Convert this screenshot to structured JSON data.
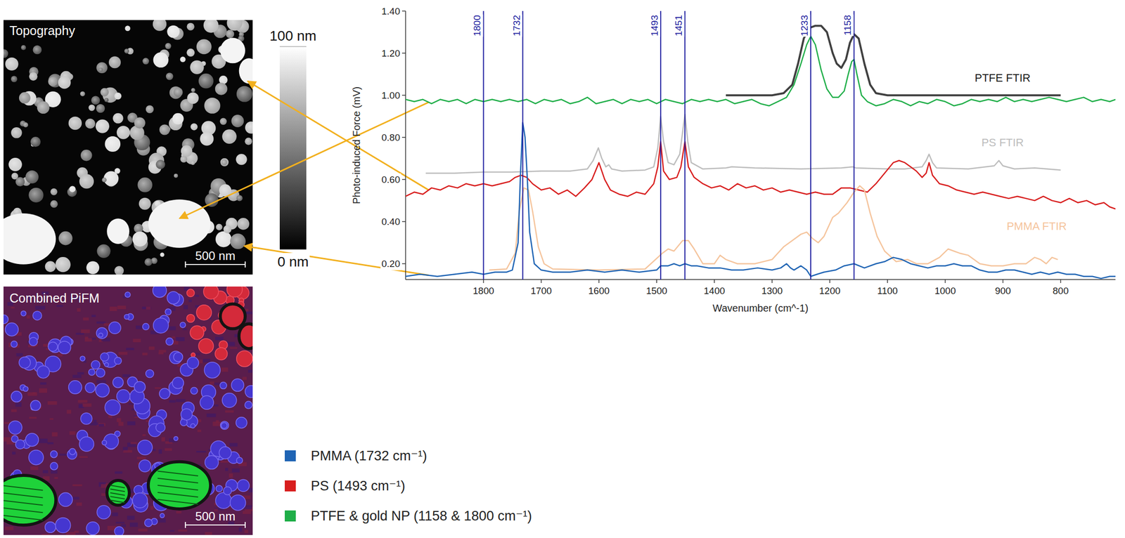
{
  "figure": {
    "topography": {
      "title": "Topography",
      "scale_bar": "500 nm",
      "colorbar": {
        "range": [
          0,
          100
        ],
        "ticks": [
          {
            "value": 0,
            "label": "0 nm"
          },
          {
            "value": 100,
            "label": "100 nm"
          }
        ]
      }
    },
    "pifm": {
      "title": "Combined PiFM",
      "scale_bar": "500 nm"
    }
  },
  "chart_data": {
    "type": "line",
    "x_label": "Wavenumber (cm^-1)",
    "y_label": "Photo-induced Force (mV)",
    "xlim": [
      1935,
      705
    ],
    "ylim": [
      0.125,
      1.4
    ],
    "xticks": [
      1800,
      1700,
      1600,
      1500,
      1400,
      1300,
      1200,
      1100,
      1000,
      900,
      800
    ],
    "yticks": [
      {
        "value": 0.2,
        "label": "0.20"
      },
      {
        "value": 0.4,
        "label": "0.40"
      },
      {
        "value": 0.6,
        "label": "0.60"
      },
      {
        "value": 0.8,
        "label": "0.80"
      },
      {
        "value": 1.0,
        "label": "1.00"
      },
      {
        "value": 1.2,
        "label": "1.20"
      },
      {
        "value": 1.4,
        "label": "1.40"
      }
    ],
    "grid": false,
    "legend": "bottom-left",
    "vlines": [
      1800,
      1732,
      1493,
      1451,
      1233,
      1158
    ],
    "series": [
      {
        "name": "PTFE FTIR",
        "color": "#404040",
        "x": [
          1380,
          1300,
          1280,
          1265,
          1255,
          1245,
          1235,
          1225,
          1215,
          1205,
          1195,
          1188,
          1180,
          1172,
          1165,
          1158,
          1150,
          1140,
          1130,
          1120,
          1100,
          800
        ],
        "values": [
          1.0,
          1.0,
          1.01,
          1.05,
          1.15,
          1.27,
          1.32,
          1.33,
          1.33,
          1.3,
          1.2,
          1.15,
          1.13,
          1.17,
          1.25,
          1.29,
          1.27,
          1.15,
          1.05,
          1.01,
          1.0,
          1.0
        ]
      },
      {
        "name": "PTFE & gold NP (1158 & 1800 cm⁻¹)",
        "color": "#1fae48",
        "x": [
          1935,
          1920,
          1905,
          1890,
          1875,
          1860,
          1845,
          1830,
          1815,
          1800,
          1785,
          1770,
          1755,
          1740,
          1725,
          1710,
          1695,
          1680,
          1665,
          1650,
          1635,
          1620,
          1605,
          1590,
          1575,
          1560,
          1545,
          1530,
          1515,
          1500,
          1485,
          1470,
          1455,
          1440,
          1425,
          1410,
          1395,
          1380,
          1365,
          1350,
          1335,
          1320,
          1305,
          1290,
          1275,
          1262,
          1250,
          1240,
          1233,
          1225,
          1215,
          1205,
          1195,
          1185,
          1175,
          1168,
          1162,
          1158,
          1153,
          1145,
          1135,
          1120,
          1105,
          1090,
          1075,
          1060,
          1045,
          1030,
          1015,
          1000,
          985,
          970,
          955,
          940,
          925,
          910,
          895,
          880,
          865,
          850,
          835,
          820,
          805,
          790,
          775,
          760,
          745,
          730,
          715,
          705
        ],
        "values": [
          0.98,
          0.97,
          0.98,
          0.96,
          0.98,
          0.97,
          0.98,
          0.96,
          0.98,
          0.97,
          0.98,
          0.97,
          0.98,
          0.97,
          0.98,
          0.96,
          0.98,
          0.97,
          0.98,
          0.96,
          0.97,
          0.99,
          0.96,
          0.97,
          0.98,
          0.96,
          0.98,
          0.97,
          0.98,
          0.96,
          0.98,
          0.97,
          0.96,
          0.98,
          0.97,
          0.98,
          0.97,
          0.98,
          0.96,
          0.97,
          0.98,
          0.96,
          0.95,
          0.97,
          0.99,
          1.05,
          1.15,
          1.24,
          1.28,
          1.24,
          1.12,
          1.03,
          0.99,
          0.99,
          1.02,
          1.1,
          1.16,
          1.17,
          1.1,
          1.0,
          0.97,
          0.95,
          0.96,
          0.98,
          0.97,
          0.95,
          0.97,
          0.96,
          0.98,
          0.97,
          0.95,
          0.96,
          0.98,
          0.97,
          0.98,
          0.97,
          0.99,
          0.97,
          0.98,
          0.97,
          0.98,
          0.99,
          0.98,
          0.97,
          0.98,
          0.99,
          0.97,
          0.98,
          0.97,
          0.98
        ]
      },
      {
        "name": "PS FTIR",
        "color": "#bdbdbd",
        "x": [
          1900,
          1850,
          1800,
          1750,
          1700,
          1650,
          1620,
          1610,
          1601,
          1595,
          1588,
          1583,
          1578,
          1560,
          1520,
          1505,
          1498,
          1493,
          1488,
          1480,
          1470,
          1460,
          1451,
          1446,
          1440,
          1420,
          1380,
          1370,
          1330,
          1250,
          1180,
          1160,
          1155,
          1100,
          1070,
          1040,
          1033,
          1028,
          1022,
          1015,
          960,
          915,
          907,
          900,
          880,
          845,
          800
        ],
        "values": [
          0.63,
          0.63,
          0.635,
          0.635,
          0.64,
          0.64,
          0.65,
          0.69,
          0.75,
          0.7,
          0.66,
          0.67,
          0.65,
          0.64,
          0.645,
          0.66,
          0.75,
          0.9,
          0.78,
          0.68,
          0.67,
          0.72,
          0.91,
          0.78,
          0.68,
          0.65,
          0.655,
          0.66,
          0.655,
          0.65,
          0.655,
          0.66,
          0.655,
          0.65,
          0.65,
          0.66,
          0.69,
          0.72,
          0.68,
          0.655,
          0.65,
          0.665,
          0.69,
          0.665,
          0.65,
          0.655,
          0.645
        ]
      },
      {
        "name": "PS (1493 cm⁻¹)",
        "color": "#d81e1e",
        "x": [
          1935,
          1920,
          1905,
          1890,
          1875,
          1860,
          1845,
          1830,
          1815,
          1800,
          1785,
          1770,
          1755,
          1745,
          1735,
          1725,
          1715,
          1700,
          1685,
          1670,
          1655,
          1640,
          1625,
          1612,
          1600,
          1590,
          1580,
          1565,
          1550,
          1535,
          1520,
          1505,
          1498,
          1493,
          1488,
          1478,
          1465,
          1458,
          1451,
          1445,
          1435,
          1420,
          1405,
          1390,
          1375,
          1360,
          1345,
          1330,
          1315,
          1300,
          1285,
          1270,
          1255,
          1240,
          1225,
          1210,
          1195,
          1180,
          1165,
          1150,
          1135,
          1120,
          1105,
          1090,
          1080,
          1070,
          1060,
          1050,
          1040,
          1033,
          1028,
          1022,
          1010,
          995,
          980,
          965,
          950,
          935,
          920,
          905,
          890,
          875,
          860,
          845,
          830,
          815,
          800,
          785,
          770,
          755,
          740,
          725,
          715,
          705
        ],
        "values": [
          0.52,
          0.54,
          0.53,
          0.56,
          0.55,
          0.57,
          0.56,
          0.58,
          0.57,
          0.58,
          0.57,
          0.58,
          0.59,
          0.61,
          0.62,
          0.61,
          0.58,
          0.55,
          0.56,
          0.53,
          0.55,
          0.52,
          0.56,
          0.6,
          0.68,
          0.6,
          0.55,
          0.53,
          0.52,
          0.54,
          0.53,
          0.58,
          0.66,
          0.78,
          0.64,
          0.6,
          0.61,
          0.66,
          0.78,
          0.66,
          0.61,
          0.58,
          0.56,
          0.57,
          0.55,
          0.58,
          0.56,
          0.57,
          0.55,
          0.56,
          0.54,
          0.55,
          0.54,
          0.53,
          0.54,
          0.53,
          0.53,
          0.56,
          0.56,
          0.55,
          0.54,
          0.58,
          0.63,
          0.68,
          0.69,
          0.68,
          0.66,
          0.64,
          0.61,
          0.63,
          0.68,
          0.62,
          0.58,
          0.57,
          0.55,
          0.54,
          0.53,
          0.54,
          0.53,
          0.52,
          0.51,
          0.52,
          0.51,
          0.5,
          0.52,
          0.5,
          0.49,
          0.51,
          0.49,
          0.5,
          0.48,
          0.49,
          0.47,
          0.46
        ]
      },
      {
        "name": "PMMA FTIR",
        "color": "#f5c49c",
        "x": [
          1790,
          1760,
          1745,
          1738,
          1730,
          1722,
          1715,
          1705,
          1695,
          1680,
          1600,
          1520,
          1490,
          1480,
          1470,
          1455,
          1445,
          1435,
          1420,
          1400,
          1390,
          1380,
          1360,
          1330,
          1300,
          1280,
          1265,
          1250,
          1240,
          1230,
          1220,
          1210,
          1195,
          1185,
          1170,
          1158,
          1148,
          1140,
          1130,
          1118,
          1105,
          1085,
          1065,
          1050,
          1030,
          1010,
          995,
          985,
          975,
          960,
          940,
          920,
          900,
          880,
          860,
          845,
          835,
          825,
          815,
          805
        ],
        "values": [
          0.17,
          0.175,
          0.25,
          0.45,
          0.56,
          0.55,
          0.45,
          0.28,
          0.2,
          0.175,
          0.17,
          0.175,
          0.25,
          0.27,
          0.26,
          0.31,
          0.31,
          0.27,
          0.2,
          0.2,
          0.24,
          0.22,
          0.2,
          0.2,
          0.22,
          0.28,
          0.31,
          0.34,
          0.35,
          0.32,
          0.3,
          0.33,
          0.42,
          0.44,
          0.49,
          0.54,
          0.57,
          0.55,
          0.44,
          0.33,
          0.26,
          0.21,
          0.22,
          0.2,
          0.2,
          0.23,
          0.27,
          0.26,
          0.25,
          0.24,
          0.2,
          0.19,
          0.19,
          0.2,
          0.2,
          0.23,
          0.22,
          0.2,
          0.23,
          0.22
        ]
      },
      {
        "name": "PMMA (1732 cm⁻¹)",
        "color": "#1f64b4",
        "x": [
          1935,
          1910,
          1880,
          1850,
          1820,
          1800,
          1780,
          1760,
          1750,
          1740,
          1736,
          1732,
          1728,
          1724,
          1720,
          1712,
          1700,
          1680,
          1650,
          1620,
          1590,
          1560,
          1530,
          1500,
          1493,
          1480,
          1470,
          1460,
          1451,
          1440,
          1430,
          1410,
          1390,
          1370,
          1350,
          1325,
          1300,
          1285,
          1275,
          1268,
          1262,
          1250,
          1240,
          1233,
          1222,
          1210,
          1190,
          1175,
          1158,
          1140,
          1120,
          1105,
          1090,
          1075,
          1060,
          1045,
          1030,
          1015,
          1000,
          985,
          970,
          955,
          940,
          925,
          910,
          895,
          880,
          865,
          850,
          835,
          820,
          805,
          790,
          775,
          760,
          745,
          730,
          715,
          705
        ],
        "values": [
          0.14,
          0.15,
          0.14,
          0.15,
          0.16,
          0.15,
          0.16,
          0.16,
          0.17,
          0.3,
          0.62,
          0.87,
          0.8,
          0.6,
          0.35,
          0.2,
          0.17,
          0.16,
          0.16,
          0.17,
          0.16,
          0.17,
          0.16,
          0.17,
          0.19,
          0.19,
          0.2,
          0.19,
          0.2,
          0.19,
          0.19,
          0.18,
          0.18,
          0.17,
          0.17,
          0.18,
          0.17,
          0.18,
          0.2,
          0.18,
          0.17,
          0.19,
          0.17,
          0.14,
          0.15,
          0.16,
          0.17,
          0.19,
          0.2,
          0.18,
          0.2,
          0.21,
          0.23,
          0.22,
          0.2,
          0.19,
          0.18,
          0.19,
          0.19,
          0.2,
          0.19,
          0.19,
          0.17,
          0.16,
          0.16,
          0.17,
          0.17,
          0.16,
          0.15,
          0.16,
          0.15,
          0.16,
          0.15,
          0.15,
          0.14,
          0.14,
          0.13,
          0.14,
          0.14
        ]
      }
    ]
  }
}
